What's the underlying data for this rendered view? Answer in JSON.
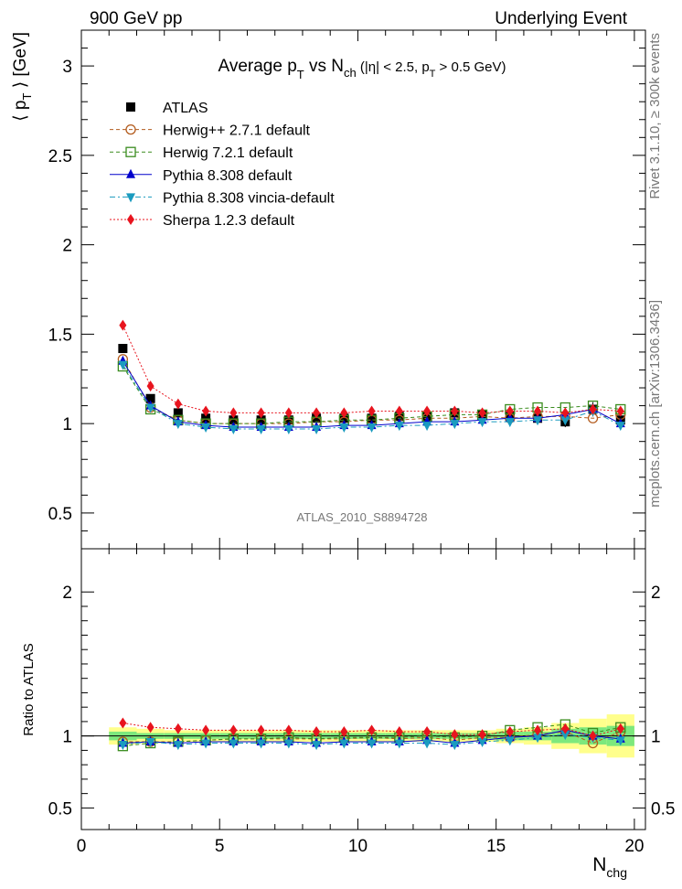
{
  "header": {
    "left": "900 GeV pp",
    "right": "Underlying Event"
  },
  "side_labels": {
    "top": "Rivet 3.1.10, ≥ 300k events",
    "bottom": "mcplots.cern.ch [arXiv:1306.3436]"
  },
  "analysis_id": "ATLAS_2010_S8894728",
  "chart_data": [
    {
      "type": "scatter",
      "title": "Average p_T vs N_ch (|η| < 2.5, p_T > 0.5 GeV)",
      "title_parts": {
        "main": "Average p",
        "sub1": "T",
        "mid": " vs N",
        "sub2": "ch",
        "tail": " (|η| < 2.5, p",
        "sub3": "T",
        "end": " > 0.5 GeV)"
      },
      "ylabel": "⟨ p_T ⟩ [GeV]",
      "ylabel_parts": {
        "main": "⟨ p",
        "sub": "T",
        "end": " ⟩ [GeV]"
      },
      "xlim": [
        0,
        20.4
      ],
      "ylim": [
        0.3,
        3.2
      ],
      "yticks": [
        "0.5",
        "1",
        "1.5",
        "2",
        "2.5",
        "3"
      ],
      "legend_position": "top-left",
      "x": [
        1.5,
        2.5,
        3.5,
        4.5,
        5.5,
        6.5,
        7.5,
        8.5,
        9.5,
        10.5,
        11.5,
        12.5,
        13.5,
        14.5,
        15.5,
        16.5,
        17.5,
        18.5,
        19.5
      ],
      "series": [
        {
          "name": "ATLAS",
          "color": "#000000",
          "marker": "square-filled",
          "line": "none",
          "values": [
            1.42,
            1.14,
            1.06,
            1.03,
            1.02,
            1.02,
            1.02,
            1.03,
            1.03,
            1.03,
            1.04,
            1.04,
            1.06,
            1.05,
            1.04,
            1.03,
            1.01,
            1.08,
            1.02
          ],
          "errors": [
            0.01,
            0.01,
            0.01,
            0.01,
            0.01,
            0.01,
            0.01,
            0.01,
            0.01,
            0.01,
            0.01,
            0.01,
            0.01,
            0.01,
            0.02,
            0.02,
            0.03,
            0.04,
            0.05
          ]
        },
        {
          "name": "Herwig++ 2.7.1 default",
          "color": "#b35c1e",
          "marker": "circle-open",
          "line": "dashed",
          "values": [
            1.36,
            1.09,
            1.02,
            1.0,
            1.0,
            1.0,
            1.0,
            1.01,
            1.01,
            1.02,
            1.02,
            1.03,
            1.03,
            1.04,
            1.03,
            1.04,
            1.04,
            1.03,
            1.05
          ]
        },
        {
          "name": "Herwig 7.2.1 default",
          "color": "#3a8c1e",
          "marker": "square-open",
          "line": "dashed",
          "values": [
            1.32,
            1.08,
            1.02,
            1.0,
            1.0,
            1.0,
            1.01,
            1.01,
            1.02,
            1.02,
            1.03,
            1.04,
            1.05,
            1.05,
            1.08,
            1.09,
            1.09,
            1.1,
            1.08
          ]
        },
        {
          "name": "Pythia 8.308 default",
          "color": "#0000cc",
          "marker": "triangle-up",
          "line": "solid",
          "values": [
            1.35,
            1.1,
            1.01,
            0.99,
            0.98,
            0.98,
            0.98,
            0.98,
            0.99,
            0.99,
            1.0,
            1.01,
            1.01,
            1.02,
            1.03,
            1.03,
            1.05,
            1.08,
            1.0
          ]
        },
        {
          "name": "Pythia 8.308 vincia-default",
          "color": "#1a9bbf",
          "marker": "triangle-down",
          "line": "dashdot",
          "values": [
            1.33,
            1.09,
            1.0,
            0.98,
            0.97,
            0.97,
            0.97,
            0.97,
            0.98,
            0.98,
            0.99,
            0.99,
            1.0,
            1.01,
            1.01,
            1.02,
            1.02,
            1.07,
            0.99
          ]
        },
        {
          "name": "Sherpa 1.2.3 default",
          "color": "#e8141e",
          "marker": "diamond",
          "line": "dotted",
          "values": [
            1.55,
            1.21,
            1.11,
            1.07,
            1.06,
            1.06,
            1.06,
            1.06,
            1.06,
            1.07,
            1.07,
            1.07,
            1.07,
            1.06,
            1.07,
            1.07,
            1.06,
            1.08,
            1.07
          ]
        }
      ]
    },
    {
      "type": "scatter",
      "ylabel": "Ratio to ATLAS",
      "xlabel": "N_chg",
      "xlabel_parts": {
        "main": "N",
        "sub": "chg"
      },
      "xlim": [
        0,
        20.4
      ],
      "ylim": [
        0.35,
        2.3
      ],
      "xticks": [
        "0",
        "5",
        "10",
        "15",
        "20"
      ],
      "yticks": [
        "0.5",
        "1",
        "2"
      ],
      "reference_line": 1,
      "bands": {
        "stat_color": "#7de87d",
        "total_color": "#ffff8c",
        "stat_halfwidth": [
          0.03,
          0.02,
          0.02,
          0.02,
          0.02,
          0.02,
          0.02,
          0.02,
          0.02,
          0.02,
          0.02,
          0.02,
          0.02,
          0.02,
          0.03,
          0.03,
          0.05,
          0.06,
          0.07
        ],
        "total_halfwidth": [
          0.06,
          0.05,
          0.04,
          0.04,
          0.04,
          0.04,
          0.04,
          0.04,
          0.04,
          0.04,
          0.04,
          0.04,
          0.04,
          0.04,
          0.05,
          0.06,
          0.09,
          0.12,
          0.15
        ]
      },
      "series": [
        {
          "name": "Herwig++ 2.7.1 default",
          "values": [
            0.96,
            0.96,
            0.96,
            0.97,
            0.98,
            0.98,
            0.98,
            0.98,
            0.98,
            0.99,
            0.98,
            0.99,
            0.97,
            0.99,
            0.99,
            1.01,
            1.03,
            0.95,
            1.03
          ]
        },
        {
          "name": "Herwig 7.2.1 default",
          "values": [
            0.93,
            0.95,
            0.96,
            0.97,
            0.98,
            0.98,
            0.99,
            0.98,
            0.99,
            0.99,
            0.99,
            1.0,
            0.99,
            1.0,
            1.04,
            1.06,
            1.08,
            1.02,
            1.06
          ]
        },
        {
          "name": "Pythia 8.308 default",
          "values": [
            0.95,
            0.96,
            0.95,
            0.96,
            0.96,
            0.96,
            0.96,
            0.95,
            0.96,
            0.96,
            0.96,
            0.97,
            0.95,
            0.97,
            0.99,
            1.0,
            1.04,
            1.0,
            0.98
          ]
        },
        {
          "name": "Pythia 8.308 vincia-default",
          "values": [
            0.94,
            0.96,
            0.94,
            0.95,
            0.95,
            0.95,
            0.95,
            0.94,
            0.95,
            0.95,
            0.95,
            0.95,
            0.94,
            0.96,
            0.97,
            0.99,
            1.01,
            0.99,
            0.97
          ]
        },
        {
          "name": "Sherpa 1.2.3 default",
          "values": [
            1.09,
            1.06,
            1.05,
            1.04,
            1.04,
            1.04,
            1.04,
            1.03,
            1.03,
            1.04,
            1.03,
            1.03,
            1.01,
            1.01,
            1.03,
            1.04,
            1.05,
            1.0,
            1.05
          ]
        }
      ]
    }
  ]
}
